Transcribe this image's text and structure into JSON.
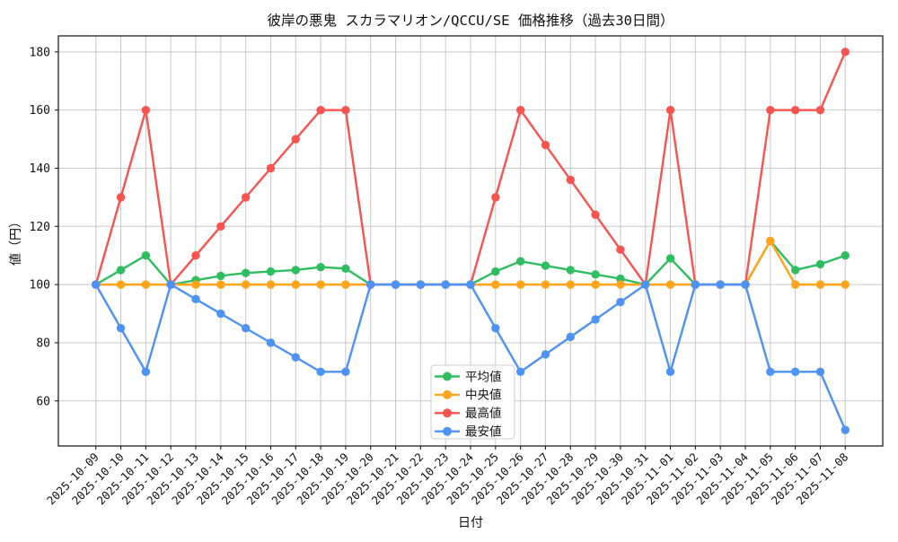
{
  "window": {
    "title": "彼岸の悪鬼 スカラマリオン/QCCU/SE 価格推移（過去30日間）"
  },
  "chart_data": {
    "type": "line",
    "title": "彼岸の悪鬼 スカラマリオン/QCCU/SE 価格推移（過去30日間）",
    "xlabel": "日付",
    "ylabel": "値（円）",
    "grid": true,
    "legend_position": "lower center-left inside",
    "background_color": "#ffffff",
    "grid_color": "#c8c8c8",
    "spine_color": "#1f1f1f",
    "yticks": [
      60,
      80,
      100,
      120,
      140,
      160,
      180
    ],
    "ylim": [
      44.5,
      185.5
    ],
    "xlim": [
      -1.5,
      31.5
    ],
    "categories": [
      "2025-10-09",
      "2025-10-10",
      "2025-10-11",
      "2025-10-12",
      "2025-10-13",
      "2025-10-14",
      "2025-10-15",
      "2025-10-16",
      "2025-10-17",
      "2025-10-18",
      "2025-10-19",
      "2025-10-20",
      "2025-10-21",
      "2025-10-22",
      "2025-10-23",
      "2025-10-24",
      "2025-10-25",
      "2025-10-26",
      "2025-10-27",
      "2025-10-28",
      "2025-10-29",
      "2025-10-30",
      "2025-10-31",
      "2025-11-01",
      "2025-11-02",
      "2025-11-03",
      "2025-11-04",
      "2025-11-05",
      "2025-11-06",
      "2025-11-07",
      "2025-11-08"
    ],
    "series": [
      {
        "key": "mean",
        "name": "平均値",
        "color": "#2ebd5f",
        "values": [
          100,
          105,
          110,
          100,
          101.5,
          103,
          104,
          104.5,
          105,
          106,
          105.5,
          100,
          100,
          100,
          100,
          100,
          104.5,
          108,
          106.5,
          105,
          103.5,
          102,
          100,
          109,
          100,
          100,
          100,
          115,
          105,
          107,
          110
        ]
      },
      {
        "key": "median",
        "name": "中央値",
        "color": "#ffa41b",
        "values": [
          100,
          100,
          100,
          100,
          100,
          100,
          100,
          100,
          100,
          100,
          100,
          100,
          100,
          100,
          100,
          100,
          100,
          100,
          100,
          100,
          100,
          100,
          100,
          100,
          100,
          100,
          100,
          115,
          100,
          100,
          100
        ]
      },
      {
        "key": "max",
        "name": "最高値",
        "color": "#f8534f",
        "values": [
          100,
          130,
          160,
          100,
          110,
          120,
          130,
          140,
          150,
          160,
          160,
          100,
          100,
          100,
          100,
          100,
          130,
          160,
          148,
          136,
          124,
          112,
          100,
          160,
          100,
          100,
          100,
          160,
          160,
          160,
          180
        ]
      },
      {
        "key": "min",
        "name": "最安値",
        "color": "#4d93f5",
        "values": [
          100,
          85,
          70,
          100,
          95,
          90,
          85,
          80,
          75,
          70,
          70,
          100,
          100,
          100,
          100,
          100,
          85,
          70,
          76,
          82,
          88,
          94,
          100,
          70,
          100,
          100,
          100,
          70,
          70,
          70,
          50
        ]
      }
    ]
  }
}
